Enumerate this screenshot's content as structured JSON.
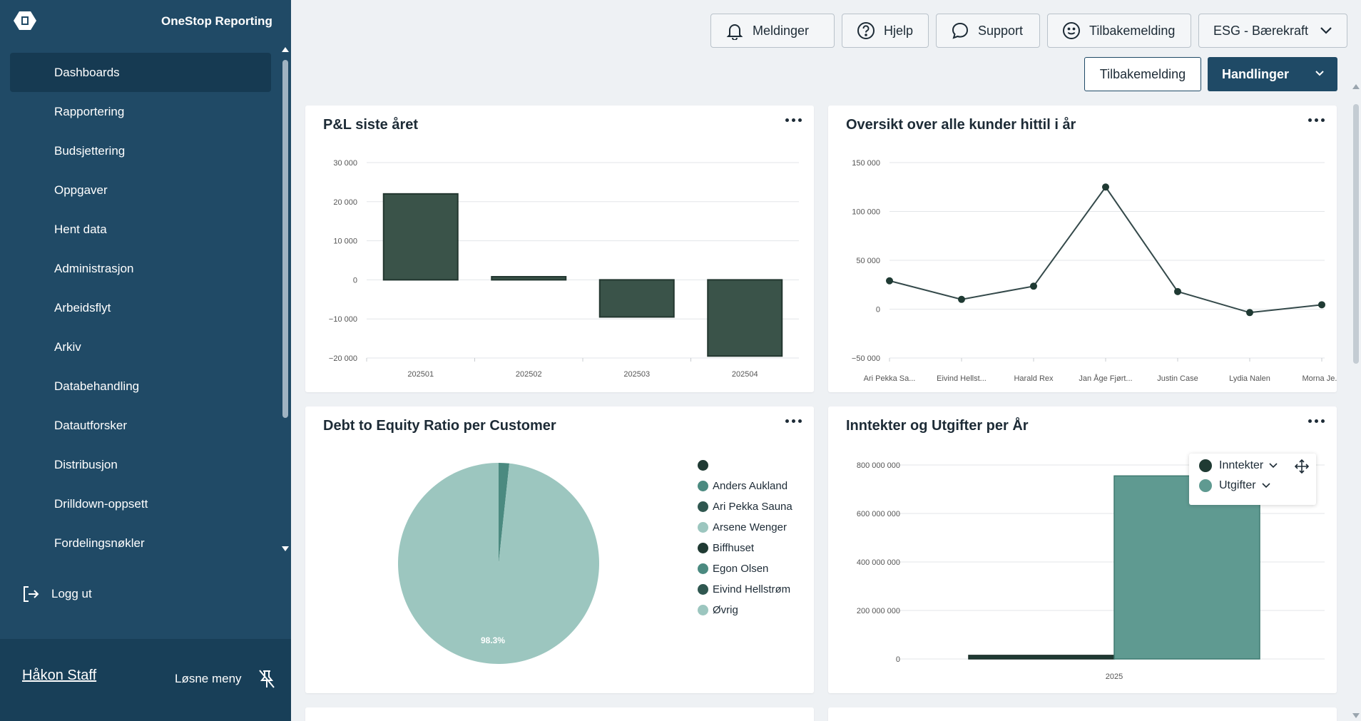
{
  "app": {
    "name": "OneStop Reporting"
  },
  "sidebar": {
    "items": [
      {
        "label": "Dashboards",
        "active": true
      },
      {
        "label": "Rapportering"
      },
      {
        "label": "Budsjettering"
      },
      {
        "label": "Oppgaver"
      },
      {
        "label": "Hent data"
      },
      {
        "label": "Administrasjon"
      },
      {
        "label": "Arbeidsflyt"
      },
      {
        "label": "Arkiv"
      },
      {
        "label": "Databehandling"
      },
      {
        "label": "Datautforsker"
      },
      {
        "label": "Distribusjon"
      },
      {
        "label": "Drilldown-oppsett"
      },
      {
        "label": "Fordelingsnøkler"
      }
    ],
    "logout_label": "Logg ut",
    "user_name": "Håkon Staff",
    "unpin_label": "Løsne meny"
  },
  "topbar": {
    "notifications": "Meldinger",
    "help": "Hjelp",
    "support": "Support",
    "feedback": "Tilbakemelding",
    "workspace": "ESG - Bærekraft",
    "feedback_button": "Tilbakemelding",
    "actions_button": "Handlinger"
  },
  "colors": {
    "sidebar": "#204a66",
    "dark_green": "#3a5349",
    "teal": "#5f9a91",
    "light_teal": "#9cc6bf"
  },
  "cards": {
    "pl": {
      "title": "P&L siste året"
    },
    "customers": {
      "title": "Oversikt over alle kunder hittil i år"
    },
    "debt": {
      "title": "Debt to Equity Ratio per Customer"
    },
    "income": {
      "title": "Inntekter og Utgifter per År"
    }
  },
  "chart_data": [
    {
      "type": "bar",
      "title": "P&L siste året",
      "categories": [
        "202501",
        "202502",
        "202503",
        "202504"
      ],
      "values": [
        22000,
        800,
        -9500,
        -19500
      ],
      "ylim": [
        -20000,
        30000
      ],
      "yticks": [
        "30 000",
        "20 000",
        "10 000",
        "0",
        "−10 000",
        "−20 000"
      ],
      "grid": true
    },
    {
      "type": "line",
      "title": "Oversikt over alle kunder hittil i år",
      "categories": [
        "Ari Pekka Sa...",
        "Eivind Hellst...",
        "Harald Rex",
        "Jan Åge Fjørt...",
        "Justin Case",
        "Lydia Nalen",
        "Morna Je..."
      ],
      "values": [
        29000,
        10000,
        23500,
        125000,
        18000,
        -3500,
        4500
      ],
      "ylim": [
        -50000,
        150000
      ],
      "yticks": [
        "150 000",
        "100 000",
        "50 000",
        "0",
        "−50 000"
      ],
      "grid": true
    },
    {
      "type": "pie",
      "title": "Debt to Equity Ratio per Customer",
      "legend": [
        "",
        "Anders Aukland",
        "Ari Pekka Sauna",
        "Arsene Wenger",
        "Biffhuset",
        "Egon Olsen",
        "Eivind Hellstrøm",
        "Øvrig"
      ],
      "legend_colors": [
        "#1f3a33",
        "#4b8a80",
        "#2f5750",
        "#9cc6bf",
        "#1f3a33",
        "#4b8a80",
        "#2f5750",
        "#9cc6bf"
      ],
      "slices": [
        {
          "name": "Anders Aukland",
          "value": 1.7,
          "color": "#4b8a80"
        },
        {
          "name": "Øvrig",
          "value": 98.3,
          "color": "#9cc6bf"
        }
      ],
      "label": "98.3%",
      "legend_position": "right"
    },
    {
      "type": "bar",
      "title": "Inntekter og Utgifter per År",
      "categories": [
        "2025"
      ],
      "series": [
        {
          "name": "Inntekter",
          "values": [
            15000000
          ],
          "color": "#1f3a33"
        },
        {
          "name": "Utgifter",
          "values": [
            755000000
          ],
          "color": "#5f9a91"
        }
      ],
      "ylim": [
        0,
        800000000
      ],
      "yticks": [
        "800 000 000",
        "600 000 000",
        "400 000 000",
        "200 000 000",
        "0"
      ],
      "legend_position": "top-right",
      "grid": true
    }
  ]
}
